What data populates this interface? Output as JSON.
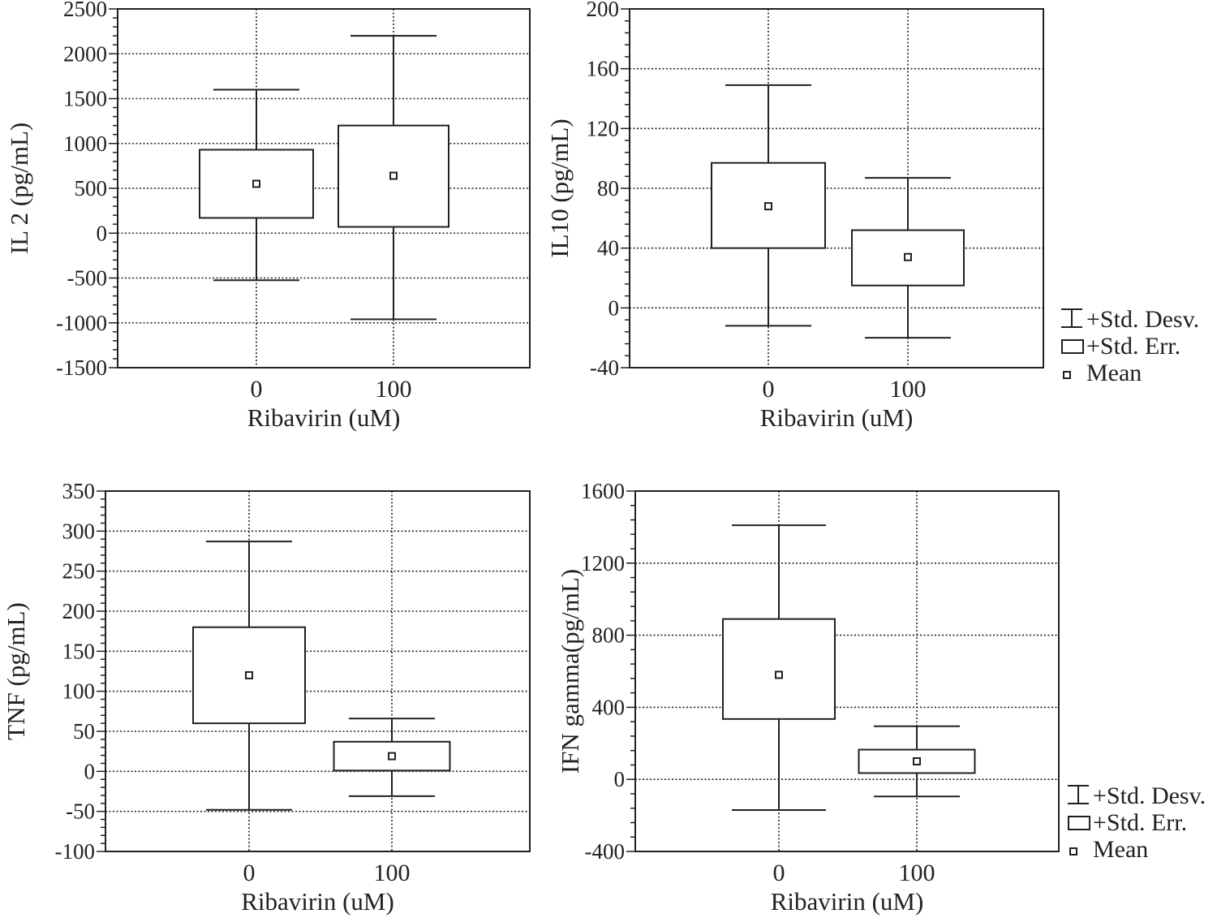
{
  "chart_data": [
    {
      "type": "box",
      "ylabel": "IL 2 (pg/mL)",
      "xlabel": "Ribavirin (uM)",
      "categories": [
        "0",
        "100"
      ],
      "ylim": [
        -1500,
        2500
      ],
      "yticks": [
        "-1500",
        "-1000",
        "-500",
        "0",
        "500",
        "1000",
        "1500",
        "2000",
        "2500"
      ],
      "grid": true,
      "series": [
        {
          "mean": 550,
          "std_err_low": 170,
          "std_err_high": 930,
          "std_dev_low": -525,
          "std_dev_high": 1600
        },
        {
          "mean": 640,
          "std_err_low": 70,
          "std_err_high": 1200,
          "std_dev_low": -960,
          "std_dev_high": 2200
        }
      ]
    },
    {
      "type": "box",
      "ylabel": "IL10 (pg/mL)",
      "xlabel": "Ribavirin (uM)",
      "categories": [
        "0",
        "100"
      ],
      "ylim": [
        -40,
        200
      ],
      "yticks": [
        "-40",
        "0",
        "40",
        "80",
        "120",
        "160",
        "200"
      ],
      "grid": true,
      "legend": {
        "placement": "right",
        "items": [
          "+Std. Desv.",
          "+Std. Err.",
          "Mean"
        ]
      },
      "series": [
        {
          "mean": 68,
          "std_err_low": 40,
          "std_err_high": 97,
          "std_dev_low": -12,
          "std_dev_high": 149
        },
        {
          "mean": 34,
          "std_err_low": 15,
          "std_err_high": 52,
          "std_dev_low": -20,
          "std_dev_high": 87
        }
      ]
    },
    {
      "type": "box",
      "ylabel": "TNF (pg/mL)",
      "xlabel": "Ribavirin (uM)",
      "categories": [
        "0",
        "100"
      ],
      "ylim": [
        -100,
        350
      ],
      "yticks": [
        "-100",
        "-50",
        "0",
        "50",
        "100",
        "150",
        "200",
        "250",
        "300",
        "350"
      ],
      "grid": true,
      "series": [
        {
          "mean": 120,
          "std_err_low": 60,
          "std_err_high": 180,
          "std_dev_low": -48,
          "std_dev_high": 287
        },
        {
          "mean": 19,
          "std_err_low": 1,
          "std_err_high": 37,
          "std_dev_low": -31,
          "std_dev_high": 66
        }
      ]
    },
    {
      "type": "box",
      "ylabel": "IFN gamma(pg/mL)",
      "xlabel": "Ribavirin (uM)",
      "categories": [
        "0",
        "100"
      ],
      "ylim": [
        -400,
        1600
      ],
      "yticks": [
        "-400",
        "0",
        "400",
        "800",
        "1200",
        "1600"
      ],
      "grid": true,
      "legend": {
        "placement": "right",
        "items": [
          "+Std. Desv.",
          "+Std. Err.",
          "Mean"
        ]
      },
      "series": [
        {
          "mean": 580,
          "std_err_low": 335,
          "std_err_high": 890,
          "std_dev_low": -170,
          "std_dev_high": 1410
        },
        {
          "mean": 100,
          "std_err_low": 35,
          "std_err_high": 165,
          "std_dev_low": -95,
          "std_dev_high": 295
        }
      ]
    }
  ]
}
